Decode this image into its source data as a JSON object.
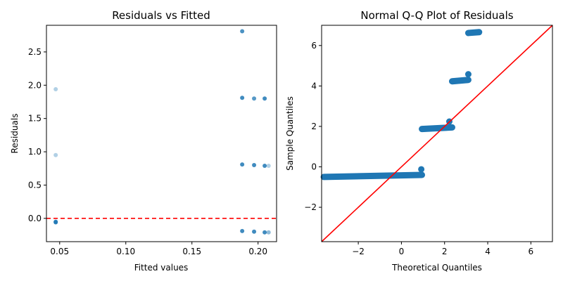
{
  "colors": {
    "points": "#1f77b4",
    "reference": "#ff0000",
    "background": "#ffffff",
    "axes": "#000000"
  },
  "chart_data": [
    {
      "type": "scatter",
      "title": "Residuals vs Fitted",
      "xlabel": "Fitted values",
      "ylabel": "Residuals",
      "xlim": [
        0.04,
        0.214
      ],
      "ylim": [
        -0.35,
        2.9
      ],
      "xticks": [
        0.05,
        0.1,
        0.15,
        0.2
      ],
      "xtick_labels": [
        "0.05",
        "0.10",
        "0.15",
        "0.20"
      ],
      "yticks": [
        0.0,
        0.5,
        1.0,
        1.5,
        2.0,
        2.5
      ],
      "ytick_labels": [
        "0.0",
        "0.5",
        "1.0",
        "1.5",
        "2.0",
        "2.5"
      ],
      "grid": false,
      "reference_line": {
        "orientation": "horizontal",
        "y": 0,
        "style": "dashed",
        "color": "#ff0000"
      },
      "points": [
        {
          "x": 0.047,
          "y": 1.94,
          "alpha": 0.35
        },
        {
          "x": 0.047,
          "y": 0.95,
          "alpha": 0.35
        },
        {
          "x": 0.047,
          "y": -0.05,
          "alpha": 0.85
        },
        {
          "x": 0.047,
          "y": -0.06,
          "alpha": 0.85
        },
        {
          "x": 0.188,
          "y": 2.81,
          "alpha": 0.8
        },
        {
          "x": 0.188,
          "y": 1.81,
          "alpha": 0.85
        },
        {
          "x": 0.188,
          "y": 0.81,
          "alpha": 0.85
        },
        {
          "x": 0.188,
          "y": -0.19,
          "alpha": 0.85
        },
        {
          "x": 0.197,
          "y": 1.8,
          "alpha": 0.75
        },
        {
          "x": 0.197,
          "y": 0.8,
          "alpha": 0.85
        },
        {
          "x": 0.197,
          "y": -0.2,
          "alpha": 0.85
        },
        {
          "x": 0.205,
          "y": 1.8,
          "alpha": 0.85
        },
        {
          "x": 0.205,
          "y": 0.79,
          "alpha": 0.85
        },
        {
          "x": 0.205,
          "y": -0.21,
          "alpha": 0.85
        },
        {
          "x": 0.208,
          "y": 0.79,
          "alpha": 0.35
        },
        {
          "x": 0.208,
          "y": -0.21,
          "alpha": 0.5
        }
      ]
    },
    {
      "type": "scatter",
      "title": "Normal Q-Q Plot of Residuals",
      "xlabel": "Theoretical Quantiles",
      "ylabel": "Sample Quantiles",
      "xlim": [
        -3.7,
        7.0
      ],
      "ylim": [
        -3.7,
        7.0
      ],
      "xticks": [
        -2,
        0,
        2,
        4,
        6
      ],
      "xtick_labels": [
        "−2",
        "0",
        "2",
        "4",
        "6"
      ],
      "yticks": [
        -2,
        0,
        2,
        4,
        6
      ],
      "ytick_labels": [
        "−2",
        "0",
        "2",
        "4",
        "6"
      ],
      "grid": false,
      "reference_line": {
        "orientation": "diagonal",
        "from": [
          -3.7,
          -3.7
        ],
        "to": [
          7.0,
          7.0
        ],
        "color": "#ff0000"
      },
      "segments": [
        {
          "x_start": -3.6,
          "x_end": 0.95,
          "y_start": -0.5,
          "y_end": -0.4
        },
        {
          "x_start": 0.95,
          "x_end": 2.35,
          "y_start": 1.87,
          "y_end": 1.95
        },
        {
          "x_start": 2.35,
          "x_end": 3.1,
          "y_start": 4.23,
          "y_end": 4.3
        },
        {
          "x_start": 3.1,
          "x_end": 3.6,
          "y_start": 6.62,
          "y_end": 6.66
        }
      ],
      "points": [
        {
          "x": 0.92,
          "y": -0.12
        },
        {
          "x": 2.22,
          "y": 2.24
        },
        {
          "x": 3.1,
          "y": 4.58
        }
      ]
    }
  ]
}
